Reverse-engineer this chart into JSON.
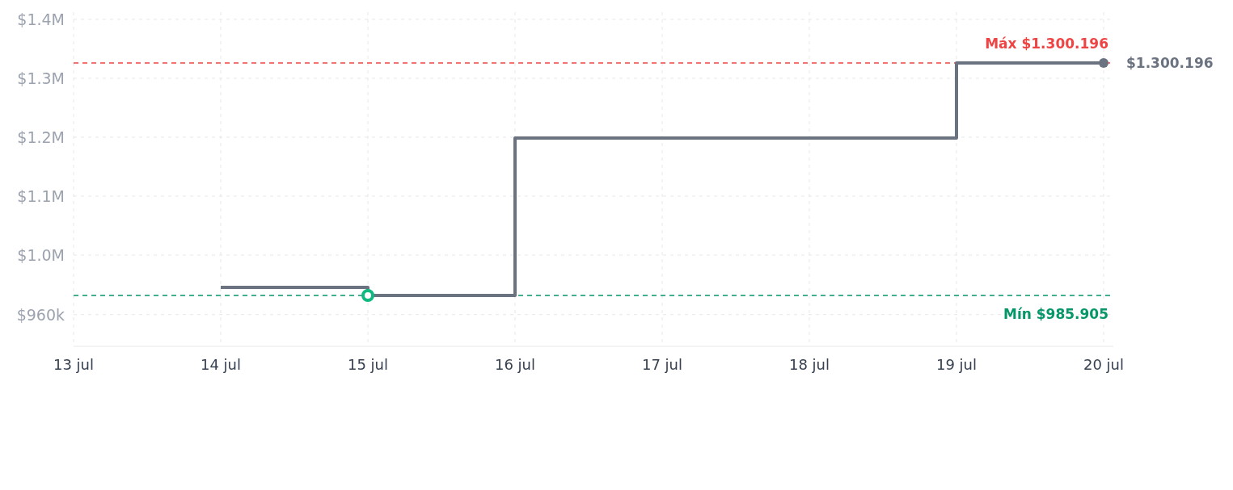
{
  "chart_data": {
    "type": "step",
    "x": [
      "--07-14",
      "--07-15",
      "--07-16",
      "--07-17",
      "--07-18",
      "--07-19",
      "--07-20"
    ],
    "series": [
      {
        "color": "#6b7280",
        "values": [
          996800,
          985905,
          1198700,
          1198700,
          1198700,
          1300196,
          1300196
        ],
        "marker": "none"
      },
      {
        "type": "scatter",
        "color": "#10b981",
        "x": [
          "--07-15"
        ],
        "values": [
          985905
        ],
        "marker": "circle"
      }
    ],
    "xlim": [
      "--07-13",
      "--07-20"
    ],
    "xticks": [
      {
        "value": "--07-13",
        "label": "13 jul"
      },
      {
        "value": "--07-14",
        "label": "14 jul"
      },
      {
        "value": "--07-15",
        "label": "15 jul"
      },
      {
        "value": "--07-16",
        "label": "16 jul"
      },
      {
        "value": "--07-17",
        "label": "17 jul"
      },
      {
        "value": "--07-18",
        "label": "18 jul"
      },
      {
        "value": "--07-19",
        "label": "19 jul"
      },
      {
        "value": "--07-20",
        "label": "20 jul"
      }
    ],
    "ylim": [
      917150,
      1368900
    ],
    "yticks": [
      {
        "value": 960000,
        "label": "$960k"
      },
      {
        "value": 1040470,
        "label": "$1.0M"
      },
      {
        "value": 1120130,
        "label": "$1.1M"
      },
      {
        "value": 1199800,
        "label": "$1.2M"
      },
      {
        "value": 1279460,
        "label": "$1.3M"
      },
      {
        "value": 1359130,
        "label": "$1.4M"
      }
    ],
    "grid": true,
    "line_style": "solid",
    "ref_lines": [
      {
        "axis": "y",
        "value": 1300196,
        "label": "Máx $1.300.196",
        "color": "#ef4444",
        "line_style": "dashed"
      },
      {
        "axis": "y",
        "value": 985905,
        "label": "Mín $985.905",
        "color": "#059669",
        "line_style": "dashed"
      }
    ],
    "annotations": [
      {
        "text": "$1.300.196",
        "x": "--07-20",
        "y": 1300196
      }
    ]
  }
}
